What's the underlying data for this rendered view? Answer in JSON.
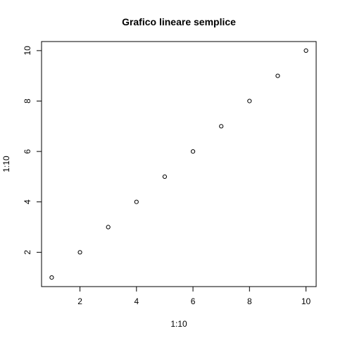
{
  "chart_data": {
    "type": "scatter",
    "title": "Grafico lineare semplice",
    "xlabel": "1:10",
    "ylabel": "1:10",
    "x": [
      1,
      2,
      3,
      4,
      5,
      6,
      7,
      8,
      9,
      10
    ],
    "y": [
      1,
      2,
      3,
      4,
      5,
      6,
      7,
      8,
      9,
      10
    ],
    "xlim": [
      0.64,
      10.36
    ],
    "ylim": [
      0.64,
      10.36
    ],
    "xticks": [
      2,
      4,
      6,
      8,
      10
    ],
    "yticks": [
      2,
      4,
      6,
      8,
      10
    ],
    "grid": false,
    "marker": "open-circle",
    "color": "#000000"
  }
}
